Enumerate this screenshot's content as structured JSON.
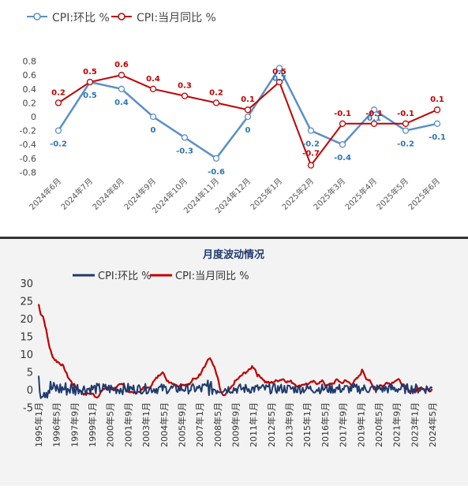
{
  "chart_data": [
    {
      "type": "line",
      "legend_position": "top-left",
      "categories": [
        "2024年6月",
        "2024年7月",
        "2024年8月",
        "2024年9月",
        "2024年10月",
        "2024年11月",
        "2024年12月",
        "2025年1月",
        "2025年2月",
        "2025年3月",
        "2025年4月",
        "2025年5月",
        "2025年6月"
      ],
      "series": [
        {
          "name": "CPI:环比 %",
          "color": "#5b8fc7",
          "values": [
            -0.2,
            0.5,
            0.4,
            0,
            -0.3,
            -0.6,
            0,
            0.7,
            -0.2,
            -0.4,
            0.1,
            -0.2,
            -0.1
          ],
          "labels": [
            "-0.2",
            "0.5",
            "0.4",
            "0",
            "-0.3",
            "-0.6",
            "0",
            "0.7",
            "-0.2",
            "-0.4",
            "0.1",
            "-0.2",
            "-0.1"
          ]
        },
        {
          "name": "CPI:当月同比 %",
          "color": "#c00000",
          "values": [
            0.2,
            0.5,
            0.6,
            0.4,
            0.3,
            0.2,
            0.1,
            0.5,
            -0.7,
            -0.1,
            -0.1,
            -0.1,
            0.1
          ],
          "labels": [
            "0.2",
            "0.5",
            "0.6",
            "0.4",
            "0.3",
            "0.2",
            "0.1",
            "0.5",
            "-0.7",
            "-0.1",
            "-0.1",
            "-0.1",
            "0.1"
          ]
        }
      ],
      "yticks": [
        "0.8",
        "0.6",
        "0.4",
        "0.2",
        "0",
        "-0.2",
        "-0.4",
        "-0.6",
        "-0.8"
      ],
      "ylim": [
        -0.8,
        0.8
      ],
      "grid": false
    },
    {
      "type": "line",
      "title": "月度波动情况",
      "legend_position": "top-center",
      "series_names": [
        "CPI:环比 %",
        "CPI:当月同比 %"
      ],
      "series_colors": [
        "#1f3a6e",
        "#c00000"
      ],
      "xticks": [
        "1995年1月",
        "1996年5月",
        "1997年9月",
        "1999年1月",
        "2000年5月",
        "2001年9月",
        "2003年1月",
        "2004年5月",
        "2005年9月",
        "2007年1月",
        "2008年5月",
        "2009年9月",
        "2011年1月",
        "2012年5月",
        "2013年9月",
        "2015年1月",
        "2016年5月",
        "2017年9月",
        "2019年1月",
        "2020年5月",
        "2021年9月",
        "2023年1月",
        "2024年5月"
      ],
      "yticks": [
        "30",
        "25",
        "20",
        "15",
        "10",
        "5",
        "0",
        "-5"
      ],
      "ylim": [
        -5,
        30
      ],
      "grid": false,
      "yoy_anchors": [
        [
          1995.0,
          24.1
        ],
        [
          1995.08,
          22.4
        ],
        [
          1995.17,
          21.4
        ],
        [
          1995.33,
          20.7
        ],
        [
          1995.5,
          18.2
        ],
        [
          1995.67,
          15.0
        ],
        [
          1995.83,
          12.1
        ],
        [
          1996.0,
          10.0
        ],
        [
          1996.2,
          8.6
        ],
        [
          1996.4,
          8.0
        ],
        [
          1996.6,
          7.5
        ],
        [
          1996.8,
          7.0
        ],
        [
          1997.0,
          5.9
        ],
        [
          1997.2,
          4.0
        ],
        [
          1997.4,
          2.8
        ],
        [
          1997.6,
          1.8
        ],
        [
          1997.8,
          1.1
        ],
        [
          1998.0,
          0.3
        ],
        [
          1998.3,
          -0.7
        ],
        [
          1998.6,
          -1.4
        ],
        [
          1998.9,
          -1.0
        ],
        [
          1999.2,
          -1.3
        ],
        [
          1999.5,
          -2.2
        ],
        [
          1999.8,
          -0.8
        ],
        [
          2000.2,
          0.7
        ],
        [
          2000.5,
          0.5
        ],
        [
          2000.8,
          0.0
        ],
        [
          2001.2,
          1.2
        ],
        [
          2001.5,
          1.4
        ],
        [
          2001.8,
          -0.3
        ],
        [
          2002.2,
          -0.8
        ],
        [
          2002.5,
          -0.8
        ],
        [
          2002.9,
          -0.4
        ],
        [
          2003.2,
          0.9
        ],
        [
          2003.5,
          0.3
        ],
        [
          2003.8,
          1.8
        ],
        [
          2004.1,
          3.2
        ],
        [
          2004.4,
          4.4
        ],
        [
          2004.6,
          5.3
        ],
        [
          2004.8,
          3.0
        ],
        [
          2005.1,
          2.2
        ],
        [
          2005.4,
          1.8
        ],
        [
          2005.7,
          1.0
        ],
        [
          2006.0,
          1.5
        ],
        [
          2006.4,
          1.4
        ],
        [
          2006.7,
          1.5
        ],
        [
          2006.9,
          2.8
        ],
        [
          2007.2,
          3.2
        ],
        [
          2007.5,
          4.4
        ],
        [
          2007.7,
          6.2
        ],
        [
          2007.9,
          6.9
        ],
        [
          2008.1,
          8.7
        ],
        [
          2008.3,
          8.5
        ],
        [
          2008.5,
          7.1
        ],
        [
          2008.7,
          4.9
        ],
        [
          2008.9,
          2.4
        ],
        [
          2009.1,
          -1.2
        ],
        [
          2009.4,
          -1.7
        ],
        [
          2009.6,
          -0.8
        ],
        [
          2009.9,
          0.6
        ],
        [
          2010.2,
          2.4
        ],
        [
          2010.5,
          3.3
        ],
        [
          2010.8,
          4.4
        ],
        [
          2011.0,
          4.9
        ],
        [
          2011.3,
          5.5
        ],
        [
          2011.5,
          6.5
        ],
        [
          2011.7,
          6.1
        ],
        [
          2011.9,
          4.1
        ],
        [
          2012.2,
          3.6
        ],
        [
          2012.5,
          2.2
        ],
        [
          2012.8,
          1.9
        ],
        [
          2013.0,
          2.0
        ],
        [
          2013.3,
          2.4
        ],
        [
          2013.6,
          2.7
        ],
        [
          2013.9,
          3.0
        ],
        [
          2014.2,
          2.2
        ],
        [
          2014.5,
          2.3
        ],
        [
          2014.8,
          1.6
        ],
        [
          2015.1,
          0.8
        ],
        [
          2015.4,
          1.5
        ],
        [
          2015.7,
          1.6
        ],
        [
          2016.0,
          1.8
        ],
        [
          2016.2,
          2.3
        ],
        [
          2016.5,
          1.8
        ],
        [
          2016.8,
          2.1
        ],
        [
          2017.0,
          2.5
        ],
        [
          2017.2,
          0.8
        ],
        [
          2017.5,
          1.5
        ],
        [
          2017.8,
          1.8
        ],
        [
          2018.1,
          2.9
        ],
        [
          2018.4,
          1.8
        ],
        [
          2018.7,
          2.5
        ],
        [
          2018.9,
          2.2
        ],
        [
          2019.2,
          1.5
        ],
        [
          2019.5,
          2.7
        ],
        [
          2019.8,
          3.8
        ],
        [
          2020.0,
          5.4
        ],
        [
          2020.1,
          5.2
        ],
        [
          2020.3,
          3.3
        ],
        [
          2020.6,
          2.4
        ],
        [
          2020.9,
          0.5
        ],
        [
          2021.1,
          -0.3
        ],
        [
          2021.4,
          1.3
        ],
        [
          2021.7,
          0.8
        ],
        [
          2021.9,
          2.3
        ],
        [
          2022.2,
          1.5
        ],
        [
          2022.5,
          2.5
        ],
        [
          2022.8,
          2.8
        ],
        [
          2023.0,
          2.1
        ],
        [
          2023.3,
          0.7
        ],
        [
          2023.6,
          -0.3
        ],
        [
          2023.9,
          -0.2
        ],
        [
          2024.1,
          -0.8
        ],
        [
          2024.3,
          0.3
        ],
        [
          2024.6,
          0.5
        ],
        [
          2024.9,
          0.2
        ],
        [
          2025.1,
          0.5
        ],
        [
          2025.2,
          -0.7
        ],
        [
          2025.45,
          -0.1
        ]
      ]
    }
  ]
}
